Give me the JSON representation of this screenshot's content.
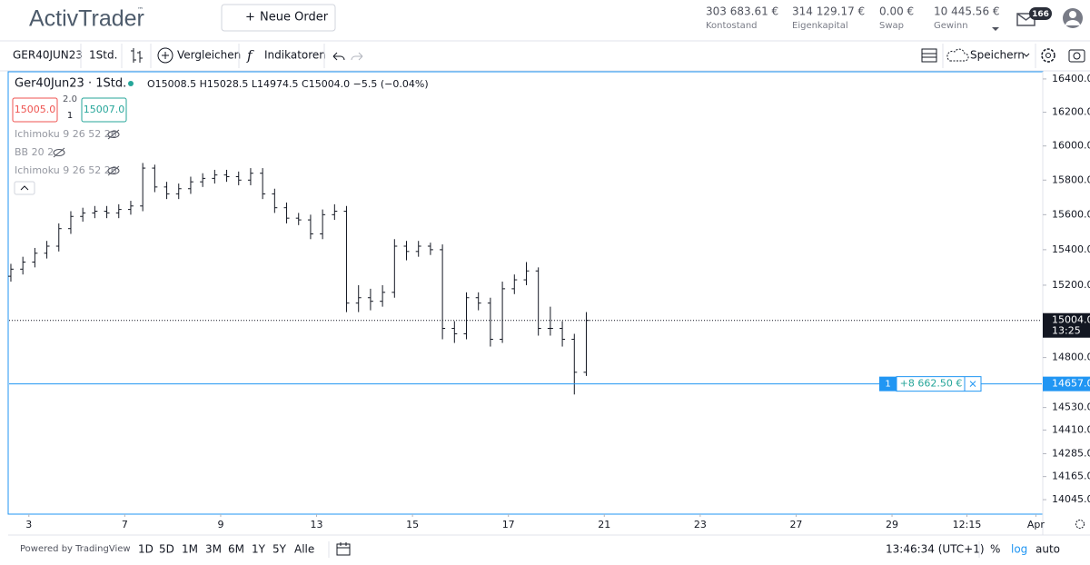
{
  "header": {
    "logo": "ActivTrader",
    "tm": "™",
    "new_order": "Neue Order",
    "stats": [
      {
        "value": "303 683.61 €",
        "label": "Kontostand"
      },
      {
        "value": "314 129.17 €",
        "label": "Eigenkapital"
      },
      {
        "value": "0.00 €",
        "label": "Swap"
      },
      {
        "value": "10 445.56 €",
        "label": "Gewinn"
      }
    ],
    "notifications": "166"
  },
  "toolbar": {
    "symbol": "GER40JUN23",
    "interval": "1Std.",
    "compare": "Vergleichen",
    "indicators": "Indikatoren",
    "save": "Speichern"
  },
  "legend": {
    "symbol": "Ger40Jun23 · 1Std.",
    "ohlc": "O15008.5 H15028.5 L14974.5 C15004.0 −5.5 (−0.04%)",
    "sell": "15005.0",
    "buy": "15007.0",
    "spread": "2.0",
    "quantity": "1",
    "studies": [
      "Ichimoku 9 26 52 26",
      "BB 20 2",
      "Ichimoku 9 26 52 26"
    ]
  },
  "chart_data": {
    "type": "ohlc",
    "log": true,
    "color": "#131722",
    "ylim": [
      13975,
      16438
    ],
    "yticks": [
      {
        "value": 16400,
        "label": "16400.0"
      },
      {
        "value": 16200,
        "label": "16200.0"
      },
      {
        "value": 16000,
        "label": "16000.0"
      },
      {
        "value": 15800,
        "label": "15800.0"
      },
      {
        "value": 15600,
        "label": "15600.0"
      },
      {
        "value": 15400,
        "label": "15400.0"
      },
      {
        "value": 15200,
        "label": "15200.0"
      },
      {
        "value": 14800,
        "label": "14800.0"
      },
      {
        "value": 14530,
        "label": "14530.0"
      },
      {
        "value": 14410,
        "label": "14410.0"
      },
      {
        "value": 14285,
        "label": "14285.0"
      },
      {
        "value": 14165,
        "label": "14165.0"
      },
      {
        "value": 14045,
        "label": "14045.0"
      }
    ],
    "xlim": [
      -0.15,
      86
    ],
    "xticks": [
      {
        "value": 1.5,
        "label": "3"
      },
      {
        "value": 9.5,
        "label": "7"
      },
      {
        "value": 17.5,
        "label": "9"
      },
      {
        "value": 25.5,
        "label": "13"
      },
      {
        "value": 33.5,
        "label": "15"
      },
      {
        "value": 41.5,
        "label": "17"
      },
      {
        "value": 49.5,
        "label": "21"
      },
      {
        "value": 57.5,
        "label": "23"
      },
      {
        "value": 65.5,
        "label": "27"
      },
      {
        "value": 73.5,
        "label": "29"
      },
      {
        "value": 79.75,
        "label": "12:15"
      },
      {
        "value": 85.5,
        "label": "Apr"
      }
    ],
    "open": [
      15250,
      15290,
      15330,
      15380,
      15420,
      15520,
      15590,
      15610,
      15620,
      15610,
      15630,
      15650,
      15870,
      15760,
      15720,
      15750,
      15790,
      15810,
      15830,
      15820,
      15800,
      15840,
      15720,
      15640,
      15580,
      15570,
      15490,
      15600,
      15620,
      15100,
      15130,
      15110,
      15160,
      15420,
      15390,
      15420,
      15400,
      14960,
      14930,
      15130,
      15100,
      14900,
      15180,
      15230,
      15280,
      14960,
      14960,
      14900,
      14720
    ],
    "high": [
      15320,
      15360,
      15410,
      15450,
      15550,
      15620,
      15640,
      15650,
      15650,
      15660,
      15680,
      15900,
      15890,
      15790,
      15780,
      15820,
      15840,
      15860,
      15860,
      15850,
      15870,
      15870,
      15750,
      15670,
      15610,
      15600,
      15630,
      15660,
      15650,
      15200,
      15180,
      15200,
      15460,
      15450,
      15450,
      15440,
      15430,
      15000,
      15160,
      15160,
      15130,
      15220,
      15260,
      15330,
      15300,
      15080,
      15000,
      14930,
      15050
    ],
    "low": [
      15220,
      15260,
      15300,
      15350,
      15390,
      15490,
      15560,
      15580,
      15580,
      15580,
      15600,
      15620,
      15730,
      15690,
      15690,
      15720,
      15760,
      15780,
      15790,
      15770,
      15770,
      15690,
      15610,
      15550,
      15540,
      15460,
      15460,
      15570,
      15050,
      15050,
      15060,
      15080,
      15130,
      15340,
      15360,
      15370,
      14900,
      14880,
      14900,
      15060,
      14860,
      14880,
      15150,
      15200,
      14920,
      14920,
      14860,
      14600,
      14700
    ],
    "close": [
      15290,
      15330,
      15380,
      15420,
      15520,
      15590,
      15610,
      15620,
      15610,
      15630,
      15650,
      15870,
      15760,
      15720,
      15750,
      15790,
      15810,
      15830,
      15820,
      15800,
      15840,
      15720,
      15640,
      15580,
      15570,
      15490,
      15600,
      15620,
      15100,
      15130,
      15110,
      15160,
      15420,
      15390,
      15420,
      15400,
      14960,
      14930,
      15130,
      15100,
      14900,
      15180,
      15230,
      15280,
      14960,
      14960,
      14900,
      14720,
      15004
    ],
    "last_price": {
      "value": 15004,
      "label": "15004.0",
      "time": "13:25"
    },
    "position": {
      "value": 14657,
      "label": "14657.0",
      "quantity": "1",
      "pnl": "+8 662.50 €",
      "color": "#2196f3"
    }
  },
  "footer": {
    "powered": "Powered by TradingView",
    "ranges": [
      "1D",
      "5D",
      "1M",
      "3M",
      "6M",
      "1Y",
      "5Y",
      "Alle"
    ],
    "clock": "13:46:34 (UTC+1)",
    "percent": "%",
    "log": "log",
    "auto": "auto"
  }
}
